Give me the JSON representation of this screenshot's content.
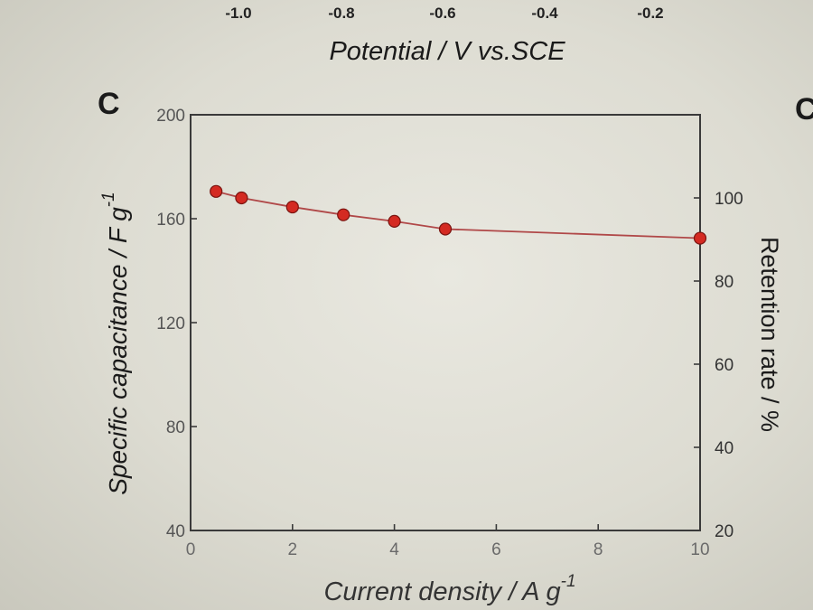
{
  "top_axis": {
    "ticks": [
      "-1.0",
      "-0.8",
      "-0.6",
      "-0.4",
      "-0.2"
    ],
    "label": "Potential / V vs.SCE"
  },
  "panel_label": "C",
  "edge_letter": "C",
  "chart_data": {
    "type": "scatter",
    "xlabel": "Current density / A g",
    "xlabel_superscript": "-1",
    "ylabel": "Specific capacitance / F g",
    "ylabel_superscript": "-1",
    "y2label": "Retention rate / %",
    "xlim": [
      0,
      10
    ],
    "ylim": [
      40,
      200
    ],
    "y2lim": [
      20,
      120
    ],
    "xticks": [
      "0",
      "2",
      "4",
      "6",
      "8",
      "10"
    ],
    "yticks": [
      "40",
      "80",
      "120",
      "160",
      "200"
    ],
    "y2ticks": [
      "20",
      "40",
      "60",
      "80",
      "100"
    ],
    "series": [
      {
        "x": [
          0.5,
          1,
          2,
          3,
          4,
          5,
          10
        ],
        "y": [
          170.5,
          168,
          164.5,
          161.5,
          159,
          156,
          152.5
        ],
        "marker_color": "#d42a22",
        "line_color": "#b04848"
      }
    ]
  }
}
